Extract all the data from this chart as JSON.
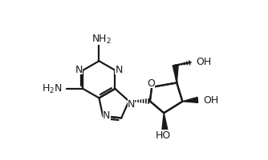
{
  "bg_color": "#ffffff",
  "line_color": "#1a1a1a",
  "bond_lw": 1.6,
  "font_size": 9,
  "fig_width": 3.34,
  "fig_height": 2.01,
  "dpi": 100,
  "xlim": [
    0,
    3.34
  ],
  "ylim": [
    0,
    2.01
  ]
}
